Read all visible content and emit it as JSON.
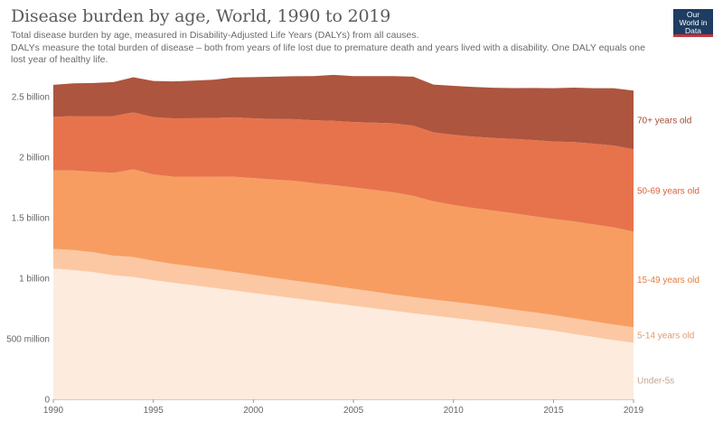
{
  "header": {
    "title": "Disease burden by age, World, 1990 to 2019",
    "subtitle_line1": "Total disease burden by age, measured in Disability-Adjusted Life Years (DALYs) from all causes.",
    "subtitle_line2": "DALYs measure the total burden of disease – both from years of life lost due to premature death and years lived with a disability. One DALY equals one lost year of healthy life.",
    "logo_text": "Our World in Data"
  },
  "colors": {
    "under5": "#fdebdd",
    "age5_14": "#fbc8a3",
    "age15_49": "#f79d62",
    "age50_69": "#e7734c",
    "age70plus": "#ad553e",
    "label_under5": "#c6a592",
    "label_5_14": "#e29a6b",
    "label_15_49": "#e67b3b",
    "label_50_69": "#d9613b",
    "label_70plus": "#a24d35"
  },
  "chart_data": {
    "type": "area",
    "stacked": true,
    "title": "Disease burden by age, World, 1990 to 2019",
    "x": [
      1990,
      1991,
      1992,
      1993,
      1994,
      1995,
      1996,
      1997,
      1998,
      1999,
      2000,
      2001,
      2002,
      2003,
      2004,
      2005,
      2006,
      2007,
      2008,
      2009,
      2010,
      2011,
      2012,
      2013,
      2014,
      2015,
      2016,
      2017,
      2018,
      2019
    ],
    "xlim": [
      1990,
      2019
    ],
    "ylim": [
      0,
      2500000000
    ],
    "x_ticks": [
      {
        "value": 1990,
        "label": "1990"
      },
      {
        "value": 1995,
        "label": "1995"
      },
      {
        "value": 2000,
        "label": "2000"
      },
      {
        "value": 2005,
        "label": "2005"
      },
      {
        "value": 2010,
        "label": "2010"
      },
      {
        "value": 2015,
        "label": "2015"
      },
      {
        "value": 2019,
        "label": "2019"
      }
    ],
    "y_ticks": [
      {
        "value": 0,
        "label": "0"
      },
      {
        "value": 500000000,
        "label": "500 million"
      },
      {
        "value": 1000000000,
        "label": "1 billion"
      },
      {
        "value": 1500000000,
        "label": "1.5 billion"
      },
      {
        "value": 2000000000,
        "label": "2 billion"
      },
      {
        "value": 2500000000,
        "label": "2.5 billion"
      }
    ],
    "grid": true,
    "legend": "labels at right end of each area",
    "series": [
      {
        "name": "Under-5s",
        "color_key": "under5",
        "label_color_key": "label_under5",
        "values": [
          1080000000,
          1068000000,
          1050000000,
          1025000000,
          1010000000,
          985000000,
          963000000,
          942000000,
          921000000,
          900000000,
          878000000,
          857000000,
          836000000,
          815000000,
          794000000,
          773000000,
          752000000,
          731000000,
          711000000,
          691000000,
          673000000,
          653000000,
          633000000,
          611000000,
          590000000,
          567000000,
          540000000,
          515000000,
          490000000,
          467000000
        ]
      },
      {
        "name": "5-14 years old",
        "color_key": "age5_14",
        "label_color_key": "label_5_14",
        "values": [
          163000000,
          165000000,
          165000000,
          162000000,
          165000000,
          160000000,
          155000000,
          155000000,
          155000000,
          152000000,
          150000000,
          147000000,
          145000000,
          145000000,
          143000000,
          140000000,
          138000000,
          135000000,
          133000000,
          133000000,
          132000000,
          132000000,
          131000000,
          130000000,
          129000000,
          129000000,
          130000000,
          129000000,
          128000000,
          128000000
        ]
      },
      {
        "name": "15-49 years old",
        "color_key": "age15_49",
        "label_color_key": "label_15_49",
        "values": [
          647000000,
          657000000,
          665000000,
          683000000,
          725000000,
          712000000,
          722000000,
          743000000,
          763000000,
          787000000,
          799000000,
          811000000,
          825000000,
          825000000,
          833000000,
          837000000,
          840000000,
          844000000,
          836000000,
          811000000,
          800000000,
          795000000,
          795000000,
          795000000,
          793000000,
          794000000,
          800000000,
          801000000,
          803000000,
          790000000
        ]
      },
      {
        "name": "50-69 years old",
        "color_key": "age50_69",
        "label_color_key": "label_50_69",
        "values": [
          443000000,
          450000000,
          460000000,
          470000000,
          470000000,
          474000000,
          481000000,
          482000000,
          485000000,
          490000000,
          494000000,
          500000000,
          508000000,
          520000000,
          530000000,
          540000000,
          555000000,
          570000000,
          580000000,
          570000000,
          580000000,
          590000000,
          600000000,
          615000000,
          630000000,
          640000000,
          655000000,
          667000000,
          675000000,
          680000000
        ]
      },
      {
        "name": "70+ years old",
        "color_key": "age70plus",
        "label_color_key": "label_70plus",
        "values": [
          265000000,
          270000000,
          273000000,
          280000000,
          290000000,
          299000000,
          305000000,
          310000000,
          316000000,
          330000000,
          340000000,
          350000000,
          355000000,
          365000000,
          380000000,
          380000000,
          385000000,
          390000000,
          405000000,
          395000000,
          405000000,
          410000000,
          415000000,
          420000000,
          430000000,
          440000000,
          450000000,
          458000000,
          474000000,
          485000000
        ]
      }
    ]
  }
}
